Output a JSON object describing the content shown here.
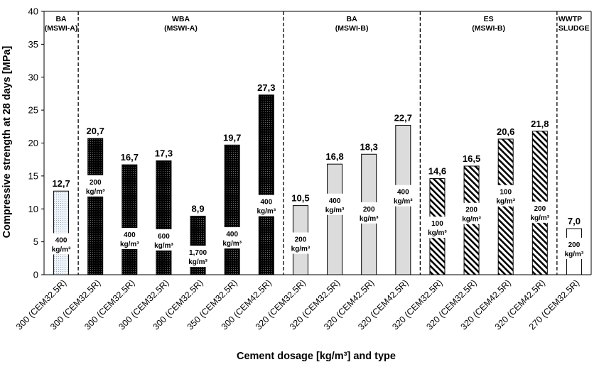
{
  "chart_data": {
    "type": "bar",
    "ylabel": "Compressive strength at 28 days [MPa]",
    "xlabel": "Cement dosage [kg/m³] and type",
    "ylim": [
      0,
      40
    ],
    "yticks": [
      0,
      5,
      10,
      15,
      20,
      25,
      30,
      35,
      40
    ],
    "categories": [
      "300 (CEM32.5R)",
      "300 (CEM32.5R)",
      "300 (CEM32.5R)",
      "300 (CEM32.5R)",
      "300 (CEM32.5R)",
      "350 (CEM32.5R)",
      "300 (CEM42.5R)",
      "320 (CEM32.5R)",
      "320 (CEM32.5R)",
      "320 (CEM42.5R)",
      "320 (CEM42.5R)",
      "320 (CEM32.5R)",
      "320 (CEM32.5R)",
      "320 (CEM42.5R)",
      "320 (CEM42.5R)",
      "270 (CEM32.5R)"
    ],
    "values": [
      12.7,
      20.7,
      16.7,
      17.3,
      8.9,
      19.7,
      27.3,
      10.5,
      16.8,
      18.3,
      22.7,
      14.6,
      16.5,
      20.6,
      21.8,
      7.0
    ],
    "value_labels": [
      "12,7",
      "20,7",
      "16,7",
      "17,3",
      "8,9",
      "19,7",
      "27,3",
      "10,5",
      "16,8",
      "18,3",
      "22,7",
      "14,6",
      "16,5",
      "20,6",
      "21,8",
      "7,0"
    ],
    "dose_labels": [
      [
        "400",
        "kg/m³"
      ],
      [
        "200",
        "kg/m³"
      ],
      [
        "400",
        "kg/m³"
      ],
      [
        "600",
        "kg/m³"
      ],
      [
        "1,700",
        "kg/m³"
      ],
      [
        "400",
        "kg/m³"
      ],
      [
        "400",
        "kg/m³"
      ],
      [
        "200",
        "kg/m³"
      ],
      [
        "400",
        "kg/m³"
      ],
      [
        "200",
        "kg/m³"
      ],
      [
        "400",
        "kg/m³"
      ],
      [
        "100",
        "kg/m³"
      ],
      [
        "200",
        "kg/m³"
      ],
      [
        "100",
        "kg/m³"
      ],
      [
        "200",
        "kg/m³"
      ],
      [
        "200",
        "kg/m³"
      ]
    ],
    "dose_label_values": [
      4.7,
      13.5,
      5.5,
      5.3,
      2.8,
      5.6,
      10.5,
      4.8,
      10.7,
      9.4,
      12.0,
      7.2,
      9.3,
      12.0,
      9.5,
      4.0
    ],
    "bar_groups": [
      0,
      1,
      1,
      1,
      1,
      1,
      1,
      2,
      2,
      2,
      2,
      3,
      3,
      3,
      3,
      4
    ],
    "groups": [
      {
        "name": "BA",
        "source": "(MSWI-A)",
        "fill": "dotted-light-blue",
        "first": 0,
        "last": 0
      },
      {
        "name": "WBA",
        "source": "(MSWI-A)",
        "fill": "solid-black-dotted",
        "first": 1,
        "last": 6
      },
      {
        "name": "BA",
        "source": "(MSWI-B)",
        "fill": "light-gray",
        "first": 7,
        "last": 10
      },
      {
        "name": "ES",
        "source": "(MSWI-B)",
        "fill": "diagonal-hatch",
        "first": 11,
        "last": 14
      },
      {
        "name": "WWTP",
        "source": "SLUDGE",
        "fill": "white",
        "first": 15,
        "last": 15
      }
    ],
    "grid": false,
    "legend": "none"
  }
}
